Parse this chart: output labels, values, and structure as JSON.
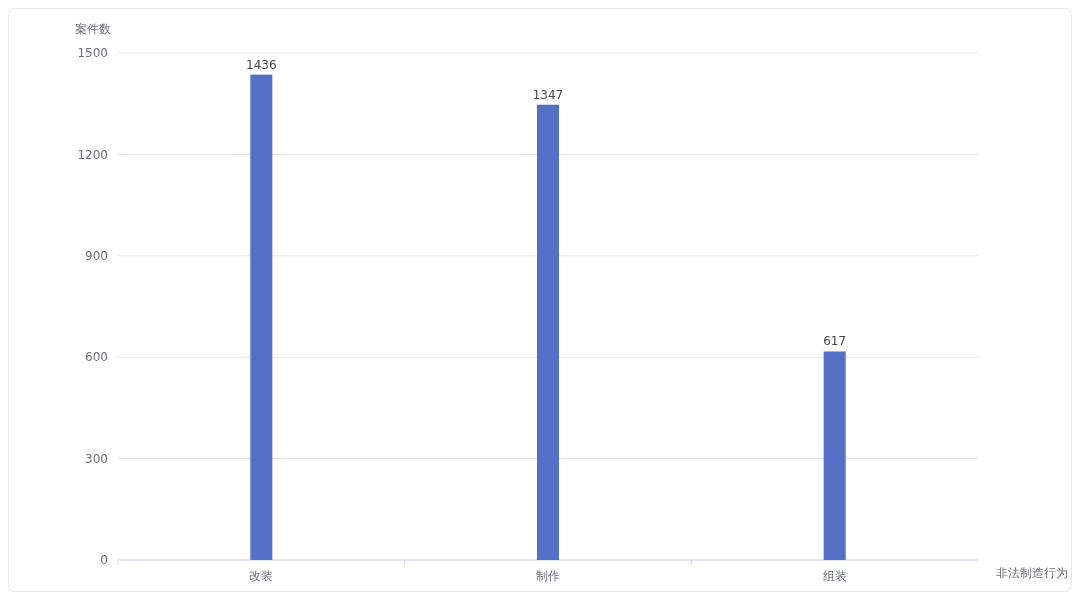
{
  "chart_data": {
    "type": "bar",
    "categories": [
      "改装",
      "制作",
      "组装"
    ],
    "values": [
      1436,
      1347,
      617
    ],
    "color": "#5470c6",
    "ylim": [
      0,
      1500
    ],
    "yticks": [
      0,
      300,
      600,
      900,
      1200,
      1500
    ],
    "grid": "y",
    "data_labels": true,
    "xlabel": "非法制造行为",
    "ylabel": "案件数"
  }
}
